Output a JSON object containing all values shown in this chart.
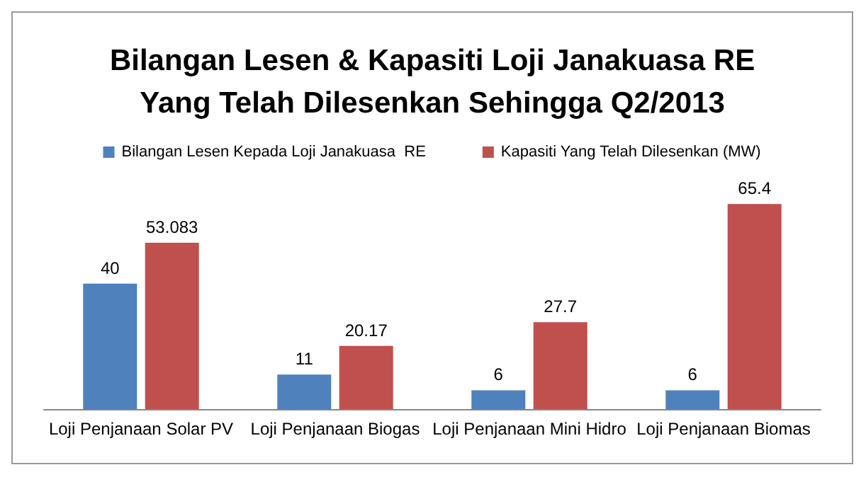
{
  "chart_data": {
    "type": "bar",
    "title": "Bilangan Lesen & Kapasiti Loji Janakuasa RE\nYang Telah Dilesenkan Sehingga Q2/2013",
    "categories": [
      "Loji Penjanaan Solar PV",
      "Loji Penjanaan Biogas",
      "Loji Penjanaan Mini Hidro",
      "Loji Penjanaan Biomas"
    ],
    "series": [
      {
        "name": "Bilangan Lesen Kepada Loji Janakuasa  RE",
        "color": "#4f81bd",
        "values": [
          40,
          11,
          6,
          6
        ]
      },
      {
        "name": "Kapasiti Yang Telah Dilesenkan (MW)",
        "color": "#c0504d",
        "values": [
          53.083,
          20.17,
          27.7,
          65.4
        ]
      }
    ],
    "data_labels": true,
    "legend": "top"
  }
}
